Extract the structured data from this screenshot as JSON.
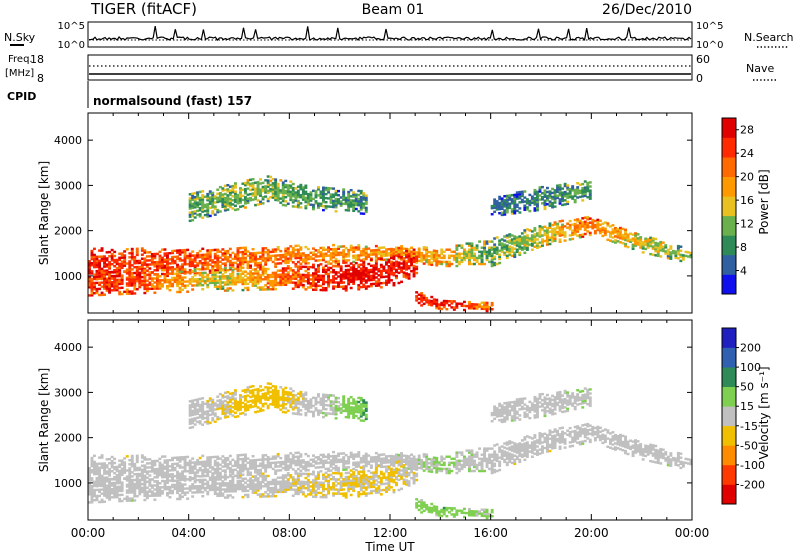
{
  "header": {
    "radar": "TIGER (fitACF)",
    "beam": "Beam 01",
    "date": "26/Dec/2010"
  },
  "status": {
    "nsky_label": "N.Sky",
    "nsky_ticks": [
      "10^5",
      "10^0"
    ],
    "nsearch_label": "N.Search",
    "nsearch_ticks": [
      "10^5",
      "10^0"
    ],
    "freq_label_1": "Freq.",
    "freq_label_2": "[MHz]",
    "freq_ticks": [
      "18",
      "8"
    ],
    "nave_label": "Nave",
    "nave_ticks": [
      "60",
      "0"
    ],
    "cpid_label": "CPID",
    "cpid_value": "normalsound (fast) 157"
  },
  "chart_data": [
    {
      "type": "heatmap",
      "panel": "power",
      "ylabel": "Slant Range [km]",
      "yticks": [
        "1000",
        "2000",
        "3000",
        "4000"
      ],
      "ylim": [
        180,
        4600
      ],
      "xticks": [
        "00:00",
        "04:00",
        "08:00",
        "12:00",
        "16:00",
        "20:00",
        "00:00"
      ],
      "xlabel": "Time UT",
      "colorbar": {
        "label": "Power [dB]",
        "ticks": [
          "4",
          "8",
          "12",
          "16",
          "20",
          "24",
          "28"
        ],
        "range": [
          0,
          30
        ],
        "colors": [
          "#1010ee",
          "#3060a0",
          "#2e8b57",
          "#6ab04c",
          "#e8c020",
          "#ff9900",
          "#ff6a00",
          "#ff2a00",
          "#e00000"
        ]
      },
      "bands": [
        {
          "t": [
            0,
            3,
            6,
            9,
            12,
            14,
            16,
            18,
            20,
            22,
            24
          ],
          "r": [
            1250,
            1280,
            1350,
            1450,
            1500,
            1400,
            1500,
            1900,
            2100,
            1700,
            1400
          ],
          "w": [
            350,
            300,
            250,
            220,
            150,
            200,
            300,
            250,
            200,
            200,
            150
          ],
          "v": [
            26,
            24,
            22,
            20,
            18,
            18,
            10,
            14,
            22,
            14,
            10
          ]
        },
        {
          "t": [
            0,
            2,
            5,
            8,
            10,
            12,
            13
          ],
          "r": [
            800,
            850,
            900,
            950,
            950,
            1100,
            1300
          ],
          "w": [
            250,
            250,
            250,
            250,
            300,
            350,
            300
          ],
          "v": [
            26,
            24,
            14,
            22,
            28,
            28,
            26
          ]
        },
        {
          "t": [
            13,
            14,
            16
          ],
          "r": [
            500,
            350,
            300
          ],
          "w": [
            150,
            100,
            100
          ],
          "v": [
            24,
            28,
            20
          ]
        },
        {
          "t": [
            4,
            7,
            9,
            11
          ],
          "r": [
            2500,
            2900,
            2700,
            2600
          ],
          "w": [
            300,
            300,
            250,
            250
          ],
          "v": [
            10,
            12,
            10,
            8
          ]
        },
        {
          "t": [
            16,
            18,
            20
          ],
          "r": [
            2500,
            2700,
            2900
          ],
          "w": [
            200,
            250,
            200
          ],
          "v": [
            6,
            8,
            10
          ]
        }
      ]
    },
    {
      "type": "heatmap",
      "panel": "velocity",
      "ylabel": "Slant Range [km]",
      "yticks": [
        "1000",
        "2000",
        "3000",
        "4000"
      ],
      "ylim": [
        180,
        4600
      ],
      "xticks": [
        "00:00",
        "04:00",
        "08:00",
        "12:00",
        "16:00",
        "20:00",
        "00:00"
      ],
      "xlabel": "Time UT",
      "colorbar": {
        "label": "Velocity [m s⁻¹]",
        "ticks": [
          "200",
          "100",
          "50",
          "15",
          "-15",
          "-50",
          "-100",
          "-200"
        ],
        "range": [
          -250,
          250
        ],
        "colors": [
          "#e00000",
          "#ff3a00",
          "#ff8c00",
          "#f0c000",
          "#c0c0c0",
          "#7fd050",
          "#2e8b57",
          "#3060b0",
          "#2020c0"
        ]
      },
      "bands": [
        {
          "t": [
            0,
            3,
            6,
            9,
            12,
            14,
            16,
            18,
            20,
            22,
            24
          ],
          "r": [
            1250,
            1280,
            1350,
            1450,
            1500,
            1400,
            1500,
            1900,
            2100,
            1700,
            1400
          ],
          "w": [
            350,
            300,
            250,
            220,
            150,
            200,
            300,
            250,
            200,
            200,
            150
          ],
          "v": [
            0,
            0,
            -5,
            0,
            5,
            30,
            0,
            0,
            0,
            0,
            0
          ]
        },
        {
          "t": [
            0,
            2,
            5,
            8,
            10,
            12,
            13
          ],
          "r": [
            800,
            850,
            900,
            950,
            950,
            1100,
            1300
          ],
          "w": [
            250,
            250,
            250,
            250,
            300,
            350,
            300
          ],
          "v": [
            0,
            0,
            0,
            -20,
            -30,
            -30,
            -15
          ]
        },
        {
          "t": [
            13,
            14,
            16
          ],
          "r": [
            500,
            350,
            300
          ],
          "w": [
            150,
            100,
            100
          ],
          "v": [
            40,
            60,
            30
          ]
        },
        {
          "t": [
            4,
            7,
            9,
            11
          ],
          "r": [
            2500,
            2900,
            2700,
            2600
          ],
          "w": [
            300,
            300,
            250,
            250
          ],
          "v": [
            0,
            -60,
            0,
            80
          ]
        },
        {
          "t": [
            16,
            18,
            20
          ],
          "r": [
            2500,
            2700,
            2900
          ],
          "w": [
            200,
            250,
            200
          ],
          "v": [
            0,
            0,
            20
          ]
        }
      ]
    }
  ]
}
